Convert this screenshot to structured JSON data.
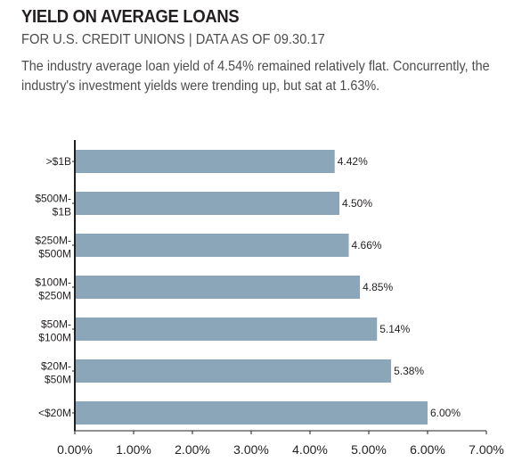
{
  "header": {
    "title": "YIELD ON AVERAGE LOANS",
    "subtitle": "FOR U.S. CREDIT UNIONS | DATA AS OF 09.30.17",
    "description": "The industry average loan yield of 4.54% remained relatively flat. Concurrently, the industry's investment yields were trending up, but sat at 1.63%."
  },
  "chart_data": {
    "type": "bar",
    "orientation": "horizontal",
    "categories": [
      ">$1B",
      "$500M-$1B",
      "$250M-$500M",
      "$100M-$250M",
      "$50M-$100M",
      "$20M-$50M",
      "<$20M"
    ],
    "category_lines": [
      [
        ">$1B"
      ],
      [
        "$500M-",
        "$1B"
      ],
      [
        "$250M-",
        "$500M"
      ],
      [
        "$100M-",
        "$250M"
      ],
      [
        "$50M-",
        "$100M"
      ],
      [
        "$20M-",
        "$50M"
      ],
      [
        "<$20M"
      ]
    ],
    "values": [
      4.42,
      4.5,
      4.66,
      4.85,
      5.14,
      5.38,
      6.0
    ],
    "value_labels": [
      "4.42%",
      "4.50%",
      "4.66%",
      "4.85%",
      "5.14%",
      "5.38%",
      "6.00%"
    ],
    "xlim": [
      0,
      7
    ],
    "x_ticks": [
      "0.00%",
      "1.00%",
      "2.00%",
      "3.00%",
      "4.00%",
      "5.00%",
      "6.00%",
      "7.00%"
    ],
    "bar_color": "#8ba6b8",
    "grid": false,
    "legend": "none"
  }
}
